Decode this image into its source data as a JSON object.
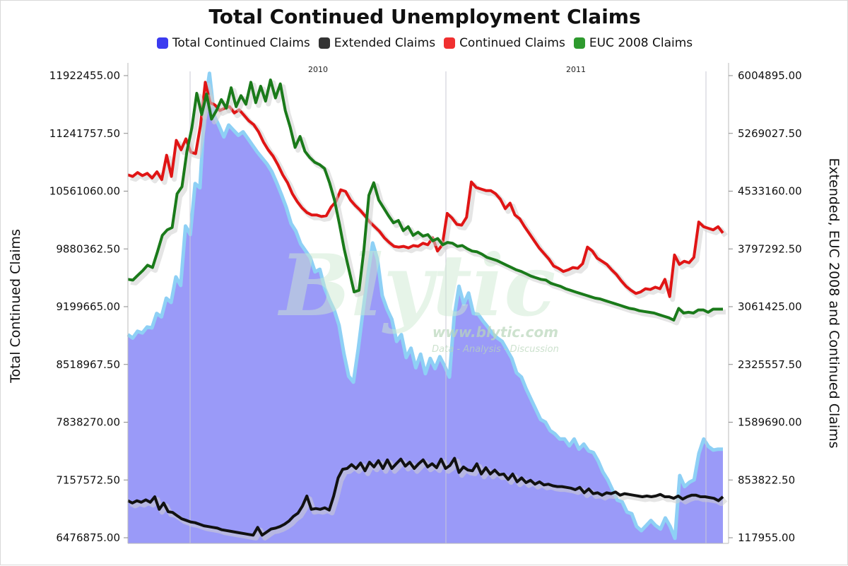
{
  "chart_data": {
    "type": "line",
    "title": "Total Continued Unemployment Claims",
    "ylabel_left": "Total Continued Claims",
    "ylabel_right": "Extended, EUC 2008 and Continued Claims",
    "y_left_ticks": [
      "11922455.00",
      "11241757.50",
      "10561060.00",
      "9880362.50",
      "9199665.00",
      "8518967.50",
      "7838270.00",
      "7157572.50",
      "6476875.00"
    ],
    "y_right_ticks": [
      "6004895.00",
      "5269027.50",
      "4533160.00",
      "3797292.50",
      "3061425.00",
      "2325557.50",
      "1589690.00",
      "853822.50",
      "117955.00"
    ],
    "ylim_left": [
      6476875.0,
      11922455.0
    ],
    "ylim_right": [
      117955.0,
      6004895.0
    ],
    "x_axis_years": [
      "2010",
      "2011"
    ],
    "grid": "vertical lines at year boundaries",
    "legend_position": "top-center",
    "watermark": {
      "logo": "Blytic",
      "url": "www.blytic.com",
      "tagline": "Data - Analysis - Discussion"
    },
    "series": [
      {
        "name": "Total Continued Claims",
        "axis": "left",
        "color": "#3b3bf0",
        "render": "area",
        "values": [
          8870000,
          8830000,
          8910000,
          8890000,
          8960000,
          8950000,
          9120000,
          9080000,
          9300000,
          9250000,
          9550000,
          9450000,
          10150000,
          10050000,
          10650000,
          10600000,
          11550000,
          11950000,
          11450000,
          11330000,
          11200000,
          11340000,
          11280000,
          11220000,
          11260000,
          11180000,
          11100000,
          11020000,
          10950000,
          10880000,
          10790000,
          10660000,
          10520000,
          10370000,
          10180000,
          10090000,
          9940000,
          9860000,
          9780000,
          9610000,
          9640000,
          9420000,
          9280000,
          9160000,
          8980000,
          8650000,
          8380000,
          8310000,
          8700000,
          9150000,
          9580000,
          9950000,
          9760000,
          9330000,
          9170000,
          9050000,
          8790000,
          8870000,
          8600000,
          8710000,
          8480000,
          8640000,
          8410000,
          8590000,
          8470000,
          8610000,
          8500000,
          8370000,
          9080000,
          9440000,
          9230000,
          9360000,
          9120000,
          9110000,
          9030000,
          8960000,
          8880000,
          8830000,
          8790000,
          8690000,
          8590000,
          8420000,
          8370000,
          8230000,
          8110000,
          7990000,
          7870000,
          7840000,
          7740000,
          7700000,
          7640000,
          7640000,
          7560000,
          7640000,
          7520000,
          7580000,
          7500000,
          7480000,
          7380000,
          7250000,
          7160000,
          7040000,
          6920000,
          6900000,
          6780000,
          6760000,
          6610000,
          6560000,
          6620000,
          6680000,
          6620000,
          6580000,
          6710000,
          6610000,
          6470000,
          7210000,
          7080000,
          7130000,
          7160000,
          7470000,
          7640000,
          7550000,
          7510000,
          7520000,
          7520000
        ]
      },
      {
        "name": "Extended Claims",
        "axis": "right",
        "color": "#111111",
        "values": [
          590000,
          560000,
          590000,
          570000,
          600000,
          570000,
          640000,
          480000,
          560000,
          450000,
          440000,
          400000,
          360000,
          340000,
          320000,
          310000,
          290000,
          270000,
          260000,
          250000,
          240000,
          220000,
          210000,
          200000,
          190000,
          180000,
          170000,
          160000,
          150000,
          250000,
          150000,
          190000,
          230000,
          240000,
          260000,
          290000,
          330000,
          390000,
          430000,
          520000,
          650000,
          480000,
          490000,
          480000,
          500000,
          470000,
          650000,
          880000,
          990000,
          1000000,
          1050000,
          1000000,
          1070000,
          970000,
          1080000,
          1020000,
          1100000,
          1000000,
          1110000,
          1000000,
          1060000,
          1120000,
          1030000,
          1080000,
          1000000,
          1060000,
          1110000,
          1020000,
          1060000,
          1010000,
          1120000,
          1000000,
          1040000,
          1130000,
          950000,
          1020000,
          980000,
          970000,
          1060000,
          930000,
          1010000,
          930000,
          980000,
          920000,
          930000,
          860000,
          930000,
          830000,
          880000,
          820000,
          850000,
          800000,
          830000,
          790000,
          800000,
          780000,
          770000,
          770000,
          760000,
          750000,
          730000,
          760000,
          690000,
          740000,
          680000,
          690000,
          660000,
          690000,
          680000,
          700000,
          660000,
          680000,
          670000,
          660000,
          650000,
          640000,
          650000,
          640000,
          650000,
          670000,
          640000,
          640000,
          620000,
          650000,
          610000,
          640000,
          660000,
          660000,
          640000,
          640000,
          630000,
          620000,
          590000,
          640000
        ]
      },
      {
        "name": "Continued Claims",
        "axis": "right",
        "color": "#e01515",
        "values": [
          4740000,
          4720000,
          4770000,
          4730000,
          4760000,
          4700000,
          4780000,
          4680000,
          4990000,
          4720000,
          5180000,
          5060000,
          5200000,
          5030000,
          5010000,
          5370000,
          5920000,
          5660000,
          5630000,
          5560000,
          5590000,
          5610000,
          5530000,
          5570000,
          5500000,
          5430000,
          5380000,
          5290000,
          5160000,
          5060000,
          4980000,
          4870000,
          4740000,
          4640000,
          4500000,
          4400000,
          4320000,
          4260000,
          4230000,
          4230000,
          4210000,
          4220000,
          4330000,
          4400000,
          4550000,
          4530000,
          4420000,
          4350000,
          4290000,
          4220000,
          4140000,
          4080000,
          4020000,
          3940000,
          3880000,
          3830000,
          3820000,
          3830000,
          3810000,
          3840000,
          3830000,
          3870000,
          3850000,
          3940000,
          3770000,
          3850000,
          4250000,
          4190000,
          4110000,
          4100000,
          4200000,
          4650000,
          4580000,
          4560000,
          4540000,
          4540000,
          4500000,
          4430000,
          4310000,
          4380000,
          4230000,
          4180000,
          4080000,
          3990000,
          3900000,
          3810000,
          3740000,
          3670000,
          3580000,
          3550000,
          3510000,
          3530000,
          3560000,
          3550000,
          3610000,
          3820000,
          3770000,
          3680000,
          3640000,
          3600000,
          3530000,
          3470000,
          3390000,
          3320000,
          3270000,
          3230000,
          3250000,
          3290000,
          3280000,
          3310000,
          3290000,
          3410000,
          3190000,
          3720000,
          3600000,
          3640000,
          3620000,
          3690000,
          4140000,
          4080000,
          4060000,
          4040000,
          4080000,
          4000000
        ]
      },
      {
        "name": "EUC 2008 Claims",
        "axis": "right",
        "color": "#1a7a1a",
        "values": [
          3410000,
          3400000,
          3460000,
          3520000,
          3590000,
          3560000,
          3760000,
          3970000,
          4040000,
          4070000,
          4500000,
          4590000,
          5040000,
          5340000,
          5780000,
          5510000,
          5770000,
          5450000,
          5560000,
          5700000,
          5590000,
          5850000,
          5610000,
          5750000,
          5640000,
          5920000,
          5660000,
          5870000,
          5680000,
          5950000,
          5720000,
          5900000,
          5560000,
          5350000,
          5090000,
          5230000,
          5040000,
          4960000,
          4900000,
          4870000,
          4820000,
          4640000,
          4420000,
          4120000,
          3790000,
          3520000,
          3250000,
          3270000,
          3790000,
          4480000,
          4640000,
          4420000,
          4320000,
          4220000,
          4130000,
          4160000,
          4030000,
          4080000,
          3970000,
          4010000,
          3960000,
          3980000,
          3900000,
          3930000,
          3850000,
          3880000,
          3870000,
          3830000,
          3840000,
          3800000,
          3770000,
          3760000,
          3730000,
          3690000,
          3670000,
          3650000,
          3620000,
          3590000,
          3560000,
          3530000,
          3510000,
          3480000,
          3450000,
          3430000,
          3410000,
          3400000,
          3360000,
          3340000,
          3320000,
          3290000,
          3270000,
          3250000,
          3230000,
          3210000,
          3190000,
          3170000,
          3160000,
          3140000,
          3120000,
          3100000,
          3080000,
          3060000,
          3040000,
          3030000,
          3010000,
          3000000,
          2990000,
          2980000,
          2960000,
          2940000,
          2920000,
          2890000,
          3040000,
          2980000,
          2990000,
          2980000,
          3020000,
          3020000,
          2990000,
          3030000,
          3030000,
          3030000
        ]
      }
    ]
  }
}
